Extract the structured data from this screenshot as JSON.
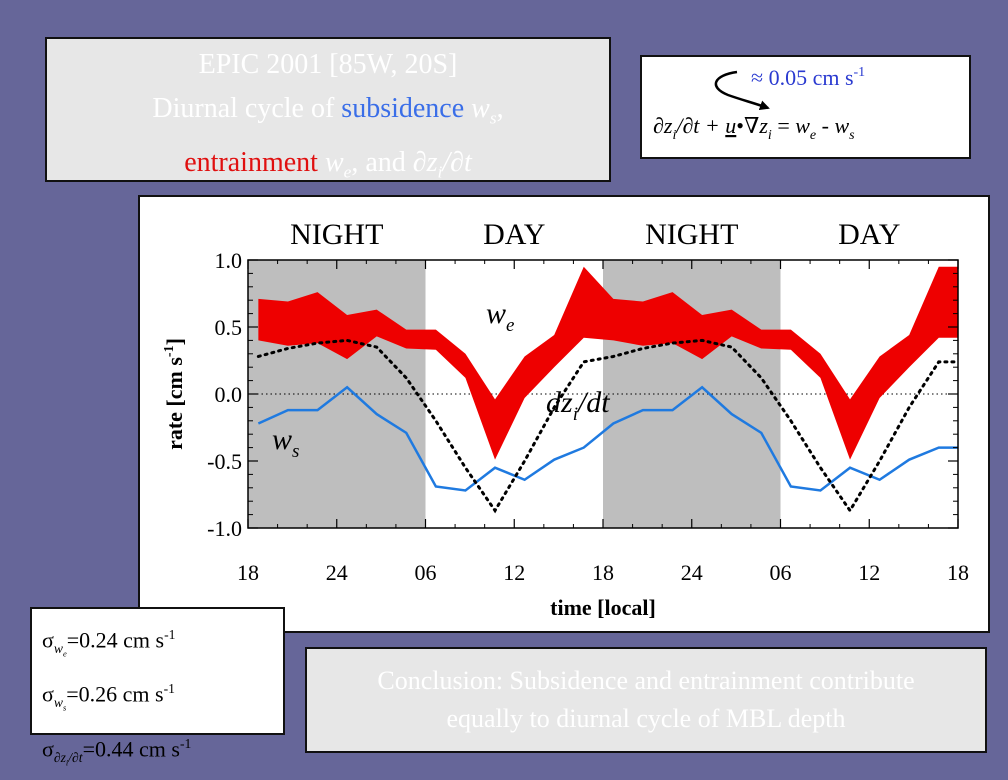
{
  "title": {
    "line1": "EPIC 2001 [85W, 20S]",
    "line2_pre": "Diurnal cycle of ",
    "line2_subsidence": "subsidence",
    "line2_ws": "w",
    "line2_ws_sub": "s",
    "line2_comma": ",",
    "line3_entrainment": "entrainment",
    "line3_we": "w",
    "line3_we_sub": "e",
    "line3_and": ", and ",
    "line3_dzdt": "∂z",
    "line3_dzdt_sub": "i",
    "line3_dzdt_post": "/∂t"
  },
  "equation": {
    "approx_text": "≈ 0.05 cm s",
    "approx_exp": "-1",
    "lhs_1": "∂z",
    "lhs_1_sub": "i",
    "lhs_2": "/∂t + ",
    "u": "u",
    "dot_grad": "•∇",
    "z": "z",
    "z_sub": "i",
    "eq": " = ",
    "we": "w",
    "we_sub": "e",
    "minus": " - ",
    "ws": "w",
    "ws_sub": "s"
  },
  "sigmas": [
    {
      "sym": "σ",
      "sub": "w",
      "subsub": "e",
      "value": "=0.24 cm s",
      "exp": "-1"
    },
    {
      "sym": "σ",
      "sub": "w",
      "subsub": "s",
      "value": "=0.26 cm s",
      "exp": "-1"
    },
    {
      "sym": "σ",
      "sub": "∂z",
      "subsub": "i",
      "subpost": "/∂t",
      "value": "=0.44 cm s",
      "exp": "-1"
    }
  ],
  "conclusion": {
    "line1": "Conclusion: Subsidence and entrainment contribute",
    "line2": "equally to diurnal cycle of MBL depth"
  },
  "colors": {
    "background": "#666699",
    "we_band": "#ee0000",
    "ws_line": "#1f7ae0",
    "night_shade": "#bebebe",
    "subsidence_text": "#3a6ee8",
    "entrainment_text": "#e01010",
    "approx_text": "#2a3ad0"
  },
  "chart_data": {
    "type": "line",
    "xlabel": "time [local]",
    "ylabel": "rate [cm s",
    "ylabel_exp": "-1",
    "ylabel_close": "]",
    "xlim": [
      18,
      66
    ],
    "ylim": [
      -1.0,
      1.0
    ],
    "xtick_values": [
      18,
      24,
      30,
      36,
      42,
      48,
      54,
      60,
      66
    ],
    "xtick_labels": [
      "18",
      "24",
      "06",
      "12",
      "18",
      "24",
      "06",
      "12",
      "18"
    ],
    "ytick_values": [
      1.0,
      0.5,
      0.0,
      -0.5,
      -1.0
    ],
    "ytick_labels": [
      "1.0",
      "0.5",
      "0.0",
      "-0.5",
      "-1.0"
    ],
    "periods": [
      {
        "label": "NIGHT",
        "start": 18,
        "end": 30,
        "shaded": true
      },
      {
        "label": "DAY",
        "start": 30,
        "end": 42,
        "shaded": false
      },
      {
        "label": "NIGHT",
        "start": 42,
        "end": 54,
        "shaded": true
      },
      {
        "label": "DAY",
        "start": 54,
        "end": 66,
        "shaded": false
      }
    ],
    "x": [
      18.7,
      20.7,
      22.7,
      24.7,
      26.7,
      28.7,
      30.7,
      32.7,
      34.7,
      36.7,
      38.7,
      40.7,
      42.7,
      44.7,
      46.7,
      48.7,
      50.7,
      52.7,
      54.7,
      56.7,
      58.7,
      60.7,
      62.7,
      64.7,
      66.0
    ],
    "series": [
      {
        "name": "w",
        "name_sub": "e",
        "kind": "band",
        "upper": [
          0.71,
          0.69,
          0.76,
          0.59,
          0.63,
          0.48,
          0.48,
          0.3,
          -0.04,
          0.28,
          0.44,
          0.95,
          0.71,
          0.69,
          0.76,
          0.59,
          0.63,
          0.48,
          0.48,
          0.3,
          -0.04,
          0.28,
          0.44,
          0.95,
          0.95
        ],
        "lower": [
          0.4,
          0.36,
          0.38,
          0.26,
          0.43,
          0.34,
          0.33,
          0.12,
          -0.49,
          -0.03,
          0.2,
          0.42,
          0.4,
          0.36,
          0.38,
          0.26,
          0.43,
          0.34,
          0.33,
          0.12,
          -0.49,
          -0.03,
          0.2,
          0.42,
          0.42
        ]
      },
      {
        "name": "dz",
        "name_sub": "i",
        "name_post": "/dt",
        "kind": "dotted",
        "values": [
          0.28,
          0.34,
          0.38,
          0.4,
          0.35,
          0.12,
          -0.2,
          -0.55,
          -0.87,
          -0.5,
          -0.1,
          0.24,
          0.28,
          0.34,
          0.38,
          0.4,
          0.35,
          0.12,
          -0.2,
          -0.55,
          -0.87,
          -0.5,
          -0.1,
          0.24,
          0.24
        ]
      },
      {
        "name": "w",
        "name_sub": "s",
        "kind": "line",
        "values": [
          -0.22,
          -0.12,
          -0.12,
          0.05,
          -0.15,
          -0.29,
          -0.69,
          -0.72,
          -0.55,
          -0.64,
          -0.49,
          -0.4,
          -0.22,
          -0.12,
          -0.12,
          0.05,
          -0.15,
          -0.29,
          -0.69,
          -0.72,
          -0.55,
          -0.64,
          -0.49,
          -0.4,
          -0.4
        ]
      }
    ],
    "zero_line": true
  }
}
